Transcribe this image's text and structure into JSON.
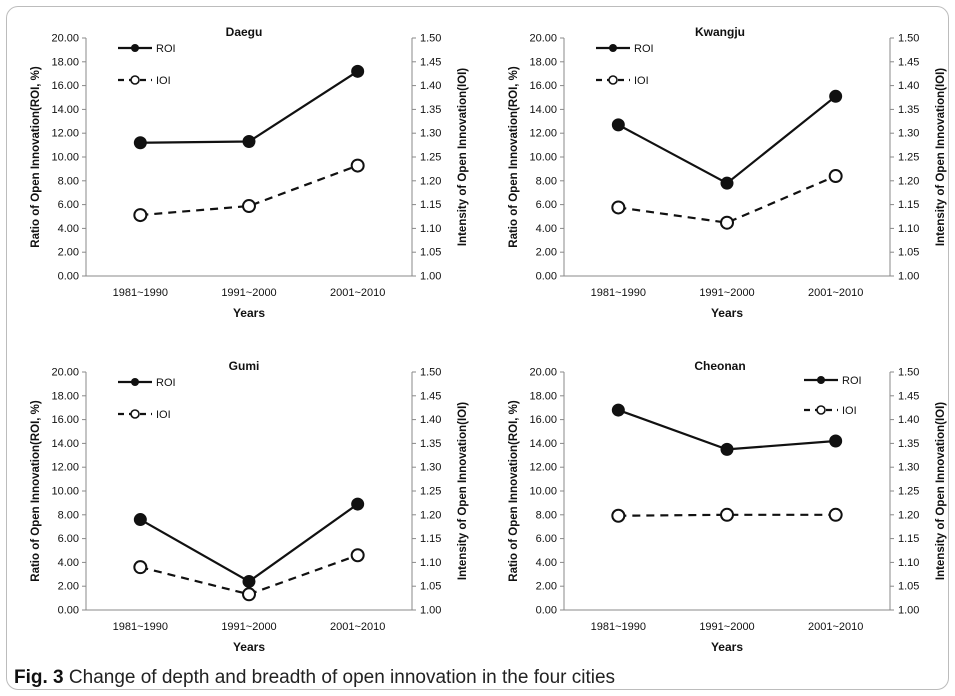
{
  "caption": {
    "label": "Fig. 3",
    "text": "Change of depth and breadth of open innovation in the four cities"
  },
  "chart_data": [
    {
      "type": "line",
      "title": "Daegu",
      "xlabel": "Years",
      "ylabel_left": "Ratio of Open Innovation(ROI, %)",
      "ylabel_right": "Intensity of Open Innovation(IOI)",
      "categories": [
        "1981~1990",
        "1991~2000",
        "2001~2010"
      ],
      "ylim_left": [
        0,
        20
      ],
      "ylim_right": [
        1.0,
        1.5
      ],
      "yticks_left": [
        "0.00",
        "2.00",
        "4.00",
        "6.00",
        "8.00",
        "10.00",
        "12.00",
        "14.00",
        "16.00",
        "18.00",
        "20.00"
      ],
      "yticks_right": [
        "1.00",
        "1.05",
        "1.10",
        "1.15",
        "1.20",
        "1.25",
        "1.30",
        "1.35",
        "1.40",
        "1.45",
        "1.50"
      ],
      "legend_position": "top-left",
      "series": [
        {
          "name": "ROI",
          "axis": "left",
          "style": "solid",
          "marker": "filled-circle",
          "values": [
            11.2,
            11.3,
            17.2
          ]
        },
        {
          "name": "IOI",
          "axis": "right",
          "style": "dashed",
          "marker": "open-circle",
          "values": [
            1.128,
            1.147,
            1.232
          ]
        }
      ]
    },
    {
      "type": "line",
      "title": "Kwangju",
      "xlabel": "Years",
      "ylabel_left": "Ratio of Open Innovation(ROI, %)",
      "ylabel_right": "Intensity of Open Innovation(IOI)",
      "categories": [
        "1981~1990",
        "1991~2000",
        "2001~2010"
      ],
      "ylim_left": [
        0,
        20
      ],
      "ylim_right": [
        1.0,
        1.5
      ],
      "yticks_left": [
        "0.00",
        "2.00",
        "4.00",
        "6.00",
        "8.00",
        "10.00",
        "12.00",
        "14.00",
        "16.00",
        "18.00",
        "20.00"
      ],
      "yticks_right": [
        "1.00",
        "1.05",
        "1.10",
        "1.15",
        "1.20",
        "1.25",
        "1.30",
        "1.35",
        "1.40",
        "1.45",
        "1.50"
      ],
      "legend_position": "top-left",
      "series": [
        {
          "name": "ROI",
          "axis": "left",
          "style": "solid",
          "marker": "filled-circle",
          "values": [
            12.7,
            7.8,
            15.1
          ]
        },
        {
          "name": "IOI",
          "axis": "right",
          "style": "dashed",
          "marker": "open-circle",
          "values": [
            1.144,
            1.112,
            1.21
          ]
        }
      ]
    },
    {
      "type": "line",
      "title": "Gumi",
      "xlabel": "Years",
      "ylabel_left": "Ratio of Open Innovation(ROI, %)",
      "ylabel_right": "Intensity of Open Innovation(IOI)",
      "categories": [
        "1981~1990",
        "1991~2000",
        "2001~2010"
      ],
      "ylim_left": [
        0,
        20
      ],
      "ylim_right": [
        1.0,
        1.5
      ],
      "yticks_left": [
        "0.00",
        "2.00",
        "4.00",
        "6.00",
        "8.00",
        "10.00",
        "12.00",
        "14.00",
        "16.00",
        "18.00",
        "20.00"
      ],
      "yticks_right": [
        "1.00",
        "1.05",
        "1.10",
        "1.15",
        "1.20",
        "1.25",
        "1.30",
        "1.35",
        "1.40",
        "1.45",
        "1.50"
      ],
      "legend_position": "top-left",
      "series": [
        {
          "name": "ROI",
          "axis": "left",
          "style": "solid",
          "marker": "filled-circle",
          "values": [
            7.6,
            2.4,
            8.9
          ]
        },
        {
          "name": "IOI",
          "axis": "right",
          "style": "dashed",
          "marker": "open-circle",
          "values": [
            1.09,
            1.033,
            1.115
          ]
        }
      ]
    },
    {
      "type": "line",
      "title": "Cheonan",
      "xlabel": "Years",
      "ylabel_left": "Ratio of Open Innovation(ROI, %)",
      "ylabel_right": "Intensity of Open Innovation(IOI)",
      "categories": [
        "1981~1990",
        "1991~2000",
        "2001~2010"
      ],
      "ylim_left": [
        0,
        20
      ],
      "ylim_right": [
        1.0,
        1.5
      ],
      "yticks_left": [
        "0.00",
        "2.00",
        "4.00",
        "6.00",
        "8.00",
        "10.00",
        "12.00",
        "14.00",
        "16.00",
        "18.00",
        "20.00"
      ],
      "yticks_right": [
        "1.00",
        "1.05",
        "1.10",
        "1.15",
        "1.20",
        "1.25",
        "1.30",
        "1.35",
        "1.40",
        "1.45",
        "1.50"
      ],
      "legend_position": "top-right",
      "series": [
        {
          "name": "ROI",
          "axis": "left",
          "style": "solid",
          "marker": "filled-circle",
          "values": [
            16.8,
            13.5,
            14.2
          ]
        },
        {
          "name": "IOI",
          "axis": "right",
          "style": "dashed",
          "marker": "open-circle",
          "values": [
            1.198,
            1.2,
            1.2
          ]
        }
      ]
    }
  ]
}
